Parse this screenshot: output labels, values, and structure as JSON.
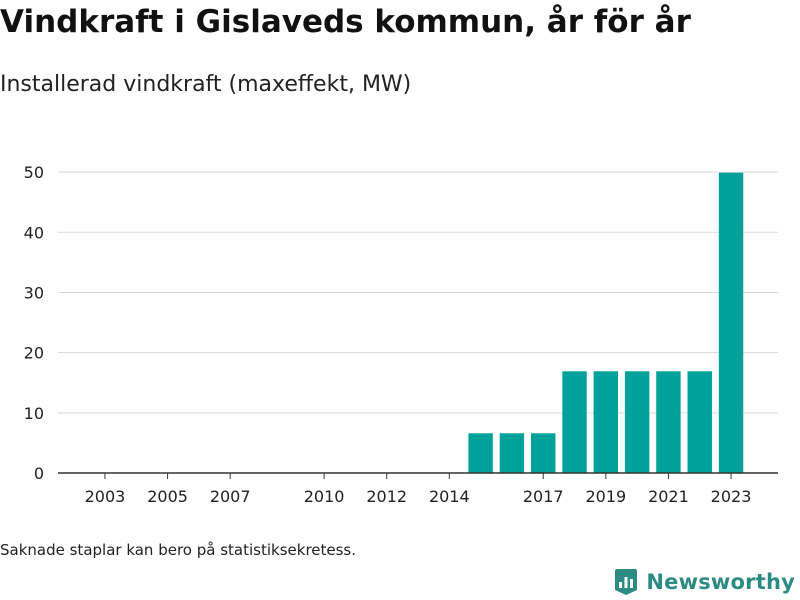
{
  "title": "Vindkraft i Gislaveds kommun, år för år",
  "subtitle": "Installerad vindkraft (maxeffekt, MW)",
  "footnote": "Saknade staplar kan bero på statistiksekretess.",
  "brand": {
    "name": "Newsworthy",
    "icon": "bar-chart-logo-icon",
    "color": "#2c8c84"
  },
  "colors": {
    "bar": "#00a19a",
    "grid": "#d9d9d9",
    "axis": "#333333"
  },
  "chart_data": {
    "type": "bar",
    "title": "Vindkraft i Gislaveds kommun, år för år",
    "subtitle": "Installerad vindkraft (maxeffekt, MW)",
    "xlabel": "",
    "ylabel": "",
    "x": [
      2003,
      2004,
      2005,
      2006,
      2007,
      2008,
      2009,
      2010,
      2011,
      2012,
      2013,
      2014,
      2015,
      2016,
      2017,
      2018,
      2019,
      2020,
      2021,
      2022,
      2023
    ],
    "values": [
      0,
      0,
      0,
      0,
      0,
      0,
      0,
      0,
      0,
      0,
      0,
      0,
      6.6,
      6.6,
      6.6,
      16.9,
      16.9,
      16.9,
      16.9,
      16.9,
      49.9
    ],
    "x_ticks": [
      "2003",
      "2005",
      "2007",
      "2010",
      "2012",
      "2014",
      "2017",
      "2019",
      "2021",
      "2023"
    ],
    "y_ticks": [
      "0",
      "10",
      "20",
      "30",
      "40",
      "50"
    ],
    "xlim": [
      2001.5,
      2024.5
    ],
    "ylim": [
      0,
      55
    ],
    "grid": true,
    "legend": "none"
  }
}
